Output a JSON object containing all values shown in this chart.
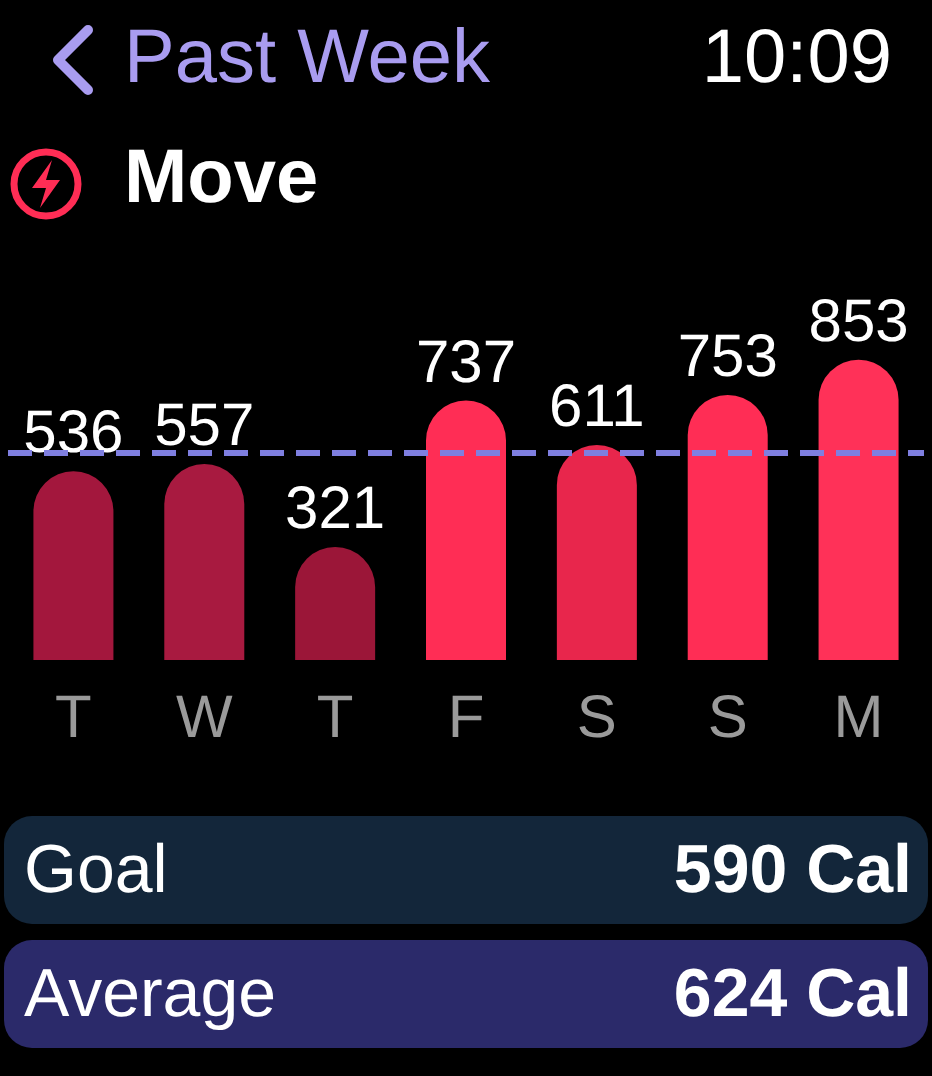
{
  "chart_data": {
    "type": "bar",
    "title": "Move",
    "categories": [
      "T",
      "W",
      "T",
      "F",
      "S",
      "S",
      "M"
    ],
    "values": [
      536,
      557,
      321,
      737,
      611,
      753,
      853
    ],
    "colors": [
      "#a3173d",
      "#a81a40",
      "#9b1638",
      "#ff2d55",
      "#e8264c",
      "#ff2d55",
      "#ff3158"
    ],
    "data_labels": true,
    "ref_lines": [
      {
        "axis": "y",
        "value": 590,
        "color": "#7f7fe0",
        "line_style": "dashed"
      }
    ],
    "annotations": [
      "Past Week",
      "10:09",
      "Goal",
      "590 Cal",
      "Average",
      "624 Cal"
    ]
  }
}
